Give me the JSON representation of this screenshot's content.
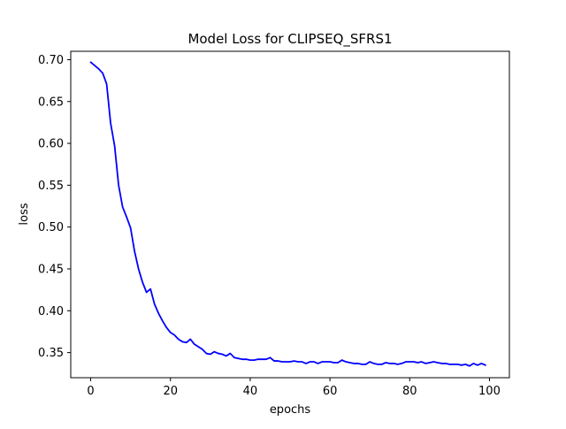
{
  "chart_data": {
    "type": "line",
    "title": "Model Loss for CLIPSEQ_SFRS1",
    "xlabel": "epochs",
    "ylabel": "loss",
    "xlim": [
      -5,
      105
    ],
    "ylim": [
      0.32,
      0.71
    ],
    "xticks": [
      0,
      20,
      40,
      60,
      80,
      100
    ],
    "yticks": [
      0.35,
      0.4,
      0.45,
      0.5,
      0.55,
      0.6,
      0.65,
      0.7
    ],
    "ytick_labels": [
      "0.35",
      "0.40",
      "0.45",
      "0.50",
      "0.55",
      "0.60",
      "0.65",
      "0.70"
    ],
    "grid": false,
    "legend": false,
    "series": [
      {
        "color": "#0000ff",
        "x": [
          0,
          1,
          2,
          3,
          4,
          5,
          6,
          7,
          8,
          9,
          10,
          11,
          12,
          13,
          14,
          15,
          16,
          17,
          18,
          19,
          20,
          21,
          22,
          23,
          24,
          25,
          26,
          27,
          28,
          29,
          30,
          31,
          32,
          33,
          34,
          35,
          36,
          37,
          38,
          39,
          40,
          41,
          42,
          43,
          44,
          45,
          46,
          47,
          48,
          49,
          50,
          51,
          52,
          53,
          54,
          55,
          56,
          57,
          58,
          59,
          60,
          61,
          62,
          63,
          64,
          65,
          66,
          67,
          68,
          69,
          70,
          71,
          72,
          73,
          74,
          75,
          76,
          77,
          78,
          79,
          80,
          81,
          82,
          83,
          84,
          85,
          86,
          87,
          88,
          89,
          90,
          91,
          92,
          93,
          94,
          95,
          96,
          97,
          98,
          99
        ],
        "y": [
          0.697,
          0.693,
          0.689,
          0.684,
          0.671,
          0.624,
          0.597,
          0.55,
          0.524,
          0.512,
          0.499,
          0.471,
          0.45,
          0.434,
          0.422,
          0.426,
          0.408,
          0.397,
          0.388,
          0.38,
          0.374,
          0.371,
          0.366,
          0.363,
          0.362,
          0.366,
          0.36,
          0.357,
          0.354,
          0.349,
          0.348,
          0.351,
          0.349,
          0.348,
          0.346,
          0.349,
          0.344,
          0.343,
          0.342,
          0.342,
          0.341,
          0.341,
          0.342,
          0.342,
          0.342,
          0.344,
          0.34,
          0.34,
          0.339,
          0.339,
          0.339,
          0.34,
          0.339,
          0.339,
          0.337,
          0.339,
          0.339,
          0.337,
          0.339,
          0.339,
          0.339,
          0.338,
          0.338,
          0.341,
          0.339,
          0.338,
          0.337,
          0.337,
          0.336,
          0.336,
          0.339,
          0.337,
          0.336,
          0.336,
          0.338,
          0.337,
          0.337,
          0.336,
          0.337,
          0.339,
          0.339,
          0.339,
          0.338,
          0.339,
          0.337,
          0.338,
          0.339,
          0.338,
          0.337,
          0.337,
          0.336,
          0.336,
          0.336,
          0.335,
          0.336,
          0.334,
          0.337,
          0.335,
          0.337,
          0.335
        ]
      }
    ]
  }
}
